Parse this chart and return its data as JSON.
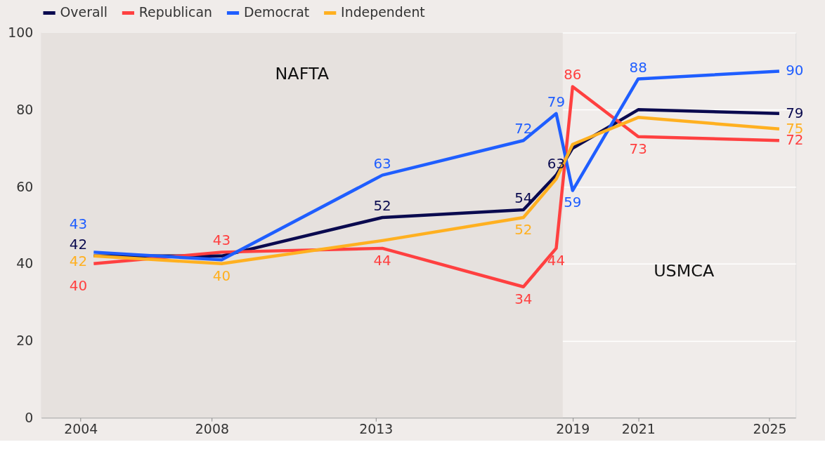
{
  "chart_data": {
    "type": "line",
    "x": [
      2004.4,
      2008.3,
      2013.2,
      2017.5,
      2018.5,
      2019.0,
      2021.0,
      2025.3
    ],
    "series": [
      {
        "name": "Overall",
        "color": "#0a0a4f",
        "values": [
          42,
          42,
          52,
          54,
          63,
          70,
          80,
          79
        ],
        "value_labels": [
          "42",
          null,
          "52",
          "54",
          "63",
          null,
          null,
          "79"
        ]
      },
      {
        "name": "Republican",
        "color": "#ff4040",
        "values": [
          40,
          43,
          44,
          34,
          44,
          86,
          73,
          72
        ],
        "value_labels": [
          "40",
          "43",
          "44",
          "34",
          "44",
          "86",
          "73",
          "72"
        ]
      },
      {
        "name": "Democrat",
        "color": "#1f5eff",
        "values": [
          43,
          41,
          63,
          72,
          79,
          59,
          88,
          90
        ],
        "value_labels": [
          "43",
          null,
          "63",
          "72",
          "79",
          "59",
          "88",
          "90"
        ]
      },
      {
        "name": "Independent",
        "color": "#ffb020",
        "values": [
          42,
          40,
          46,
          52,
          62,
          71,
          78,
          75
        ],
        "value_labels": [
          "42",
          "40",
          null,
          "52",
          null,
          null,
          null,
          "75"
        ]
      }
    ],
    "xlim": [
      2002.8,
      2025.8
    ],
    "xticks": [
      2004,
      2008,
      2013,
      2019,
      2021,
      2025
    ],
    "ylim": [
      0,
      100
    ],
    "yticks": [
      0,
      20,
      40,
      60,
      80,
      100
    ],
    "bands": [
      {
        "axis": "x",
        "from": 2002.8,
        "to": 2018.7,
        "label": "NAFTA",
        "color": "#e6e1de"
      }
    ],
    "annotations": [
      "USMCA"
    ],
    "grid": "y",
    "legend": "top",
    "marker": "none",
    "line_style": "solid"
  }
}
